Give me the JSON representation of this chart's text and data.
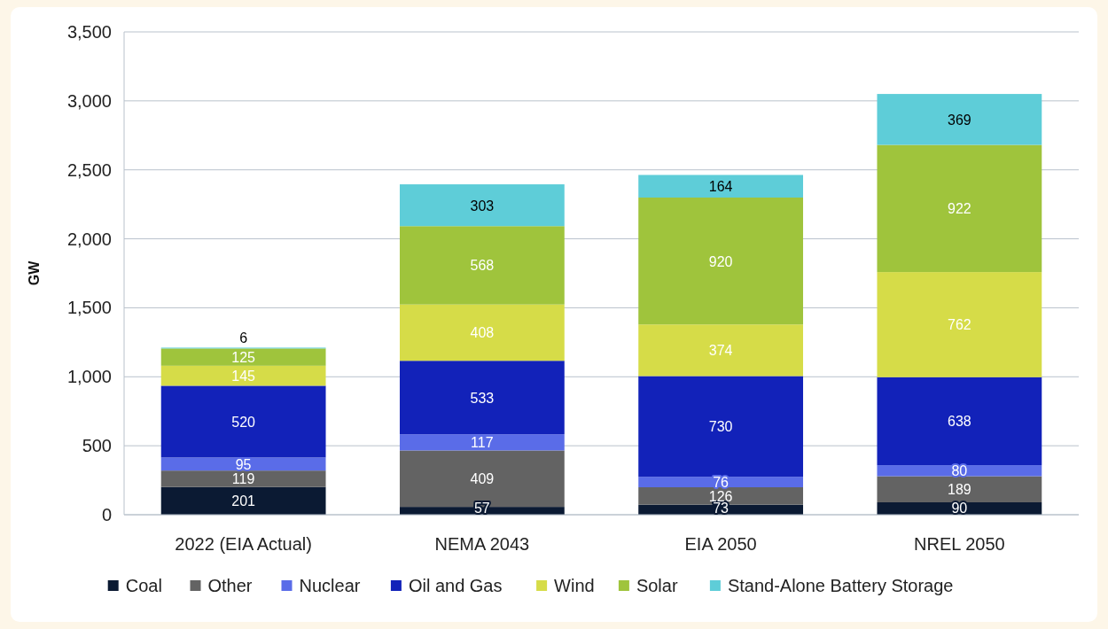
{
  "chart_data": {
    "type": "bar",
    "stacked": true,
    "ylabel": "GW",
    "categories": [
      "2022 (EIA Actual)",
      "NEMA 2043",
      "EIA 2050",
      "NREL 2050"
    ],
    "series": [
      {
        "name": "Coal",
        "color": "#0b1a33",
        "values": [
          201,
          57,
          73,
          90
        ]
      },
      {
        "name": "Other",
        "color": "#636363",
        "values": [
          119,
          409,
          126,
          189
        ]
      },
      {
        "name": "Nuclear",
        "color": "#5a6ce8",
        "values": [
          95,
          117,
          76,
          80
        ]
      },
      {
        "name": "Oil and Gas",
        "color": "#1222b9",
        "values": [
          520,
          533,
          730,
          638
        ]
      },
      {
        "name": "Wind",
        "color": "#d6dc48",
        "values": [
          145,
          408,
          374,
          762
        ]
      },
      {
        "name": "Solar",
        "color": "#9fc43c",
        "values": [
          125,
          568,
          920,
          922
        ]
      },
      {
        "name": "Stand-Alone Battery Storage",
        "color": "#5ecdd8",
        "values": [
          6,
          303,
          164,
          369
        ]
      }
    ],
    "ylim": [
      0,
      3500
    ],
    "yticks": [
      {
        "value": 0,
        "label": "0"
      },
      {
        "value": 500,
        "label": "500"
      },
      {
        "value": 1000,
        "label": "1,000"
      },
      {
        "value": 1500,
        "label": "1,500"
      },
      {
        "value": 2000,
        "label": "2,000"
      },
      {
        "value": 2500,
        "label": "2,500"
      },
      {
        "value": 3000,
        "label": "3,000"
      },
      {
        "value": 3500,
        "label": "3,500"
      }
    ],
    "grid": "y",
    "legend": "bottom",
    "data_labels": true
  }
}
